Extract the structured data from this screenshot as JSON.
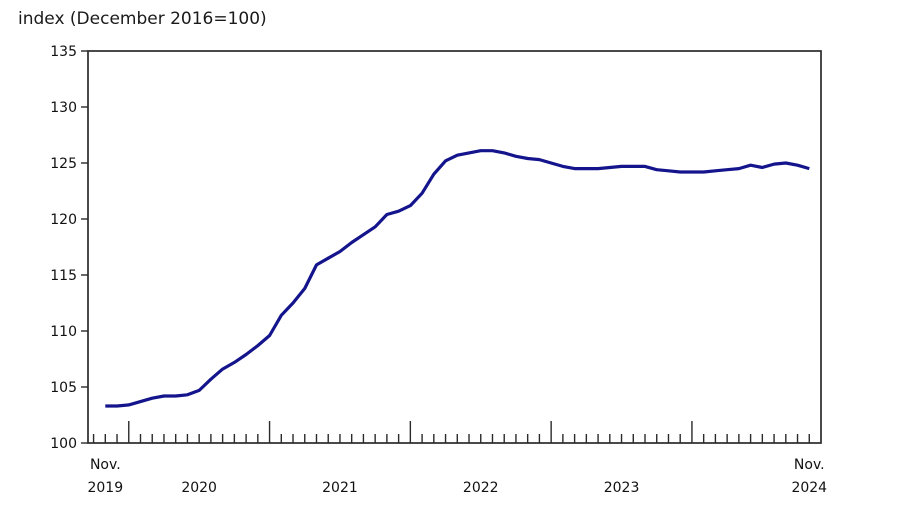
{
  "page": {
    "title": "index (December 2016=100)"
  },
  "chart_data": {
    "type": "line",
    "title": "index (December 2016=100)",
    "ylabel": "index (December 2016=100)",
    "xlabel": "",
    "ylim": [
      100,
      135
    ],
    "y_ticks": [
      100,
      105,
      110,
      115,
      120,
      125,
      130,
      135
    ],
    "grid": "off",
    "legend": "none",
    "x": [
      "Nov 2019",
      "Dec 2019",
      "Jan 2020",
      "Feb 2020",
      "Mar 2020",
      "Apr 2020",
      "May 2020",
      "Jun 2020",
      "Jul 2020",
      "Aug 2020",
      "Sep 2020",
      "Oct 2020",
      "Nov 2020",
      "Dec 2020",
      "Jan 2021",
      "Feb 2021",
      "Mar 2021",
      "Apr 2021",
      "May 2021",
      "Jun 2021",
      "Jul 2021",
      "Aug 2021",
      "Sep 2021",
      "Oct 2021",
      "Nov 2021",
      "Dec 2021",
      "Jan 2022",
      "Feb 2022",
      "Mar 2022",
      "Apr 2022",
      "May 2022",
      "Jun 2022",
      "Jul 2022",
      "Aug 2022",
      "Sep 2022",
      "Oct 2022",
      "Nov 2022",
      "Dec 2022",
      "Jan 2023",
      "Feb 2023",
      "Mar 2023",
      "Apr 2023",
      "May 2023",
      "Jun 2023",
      "Jul 2023",
      "Aug 2023",
      "Sep 2023",
      "Oct 2023",
      "Nov 2023",
      "Dec 2023",
      "Jan 2024",
      "Feb 2024",
      "Mar 2024",
      "Apr 2024",
      "May 2024",
      "Jun 2024",
      "Jul 2024",
      "Aug 2024",
      "Sep 2024",
      "Oct 2024",
      "Nov 2024"
    ],
    "series": [
      {
        "name": "index (December 2016=100)",
        "values": [
          103.3,
          103.3,
          103.4,
          103.7,
          104.0,
          104.2,
          104.2,
          104.3,
          104.7,
          105.7,
          106.6,
          107.2,
          107.9,
          108.7,
          109.6,
          111.4,
          112.5,
          113.8,
          115.9,
          116.5,
          117.1,
          117.9,
          118.6,
          119.3,
          120.4,
          120.7,
          121.2,
          122.3,
          124.0,
          125.2,
          125.7,
          125.9,
          126.1,
          126.1,
          125.9,
          125.6,
          125.4,
          125.3,
          125.0,
          124.7,
          124.5,
          124.5,
          124.5,
          124.6,
          124.7,
          124.7,
          124.7,
          124.4,
          124.3,
          124.2,
          124.2,
          124.2,
          124.3,
          124.4,
          124.5,
          124.8,
          124.6,
          124.9,
          125.0,
          124.8,
          124.5
        ]
      }
    ],
    "x_axis_labels": [
      {
        "top": "Nov.",
        "year": "2019",
        "month_index": 0
      },
      {
        "top": "",
        "year": "2020",
        "month_index": 8
      },
      {
        "top": "",
        "year": "2021",
        "month_index": 20
      },
      {
        "top": "",
        "year": "2022",
        "month_index": 32
      },
      {
        "top": "",
        "year": "2023",
        "month_index": 44
      },
      {
        "top": "Nov.",
        "year": "2024",
        "month_index": 60
      }
    ]
  },
  "colors": {
    "line": "#14148C",
    "axis": "#2a2a2a",
    "text": "#111111",
    "background": "#ffffff"
  }
}
